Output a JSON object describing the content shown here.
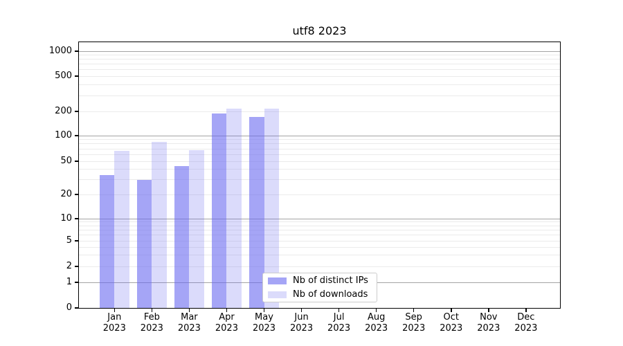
{
  "title": "utf8 2023",
  "chart_data": {
    "type": "bar",
    "title": "utf8 2023",
    "categories": [
      "Jan 2023",
      "Feb 2023",
      "Mar 2023",
      "Apr 2023",
      "May 2023",
      "Jun 2023",
      "Jul 2023",
      "Aug 2023",
      "Sep 2023",
      "Oct 2023",
      "Nov 2023",
      "Dec 2023"
    ],
    "x_tick_months": [
      "Jan",
      "Feb",
      "Mar",
      "Apr",
      "May",
      "Jun",
      "Jul",
      "Aug",
      "Sep",
      "Oct",
      "Nov",
      "Dec"
    ],
    "x_tick_year": "2023",
    "series": [
      {
        "name": "Nb of distinct IPs",
        "color": "rgba(105,105,240,0.60)",
        "values": [
          34,
          30,
          44,
          190,
          172,
          0,
          0,
          0,
          0,
          0,
          0,
          0
        ]
      },
      {
        "name": "Nb of downloads",
        "color": "rgba(105,105,240,0.24)",
        "values": [
          66,
          84,
          68,
          215,
          216,
          0,
          0,
          0,
          0,
          0,
          0,
          0
        ]
      }
    ],
    "y_axis": {
      "scale": "symlog",
      "ticks": [
        0,
        1,
        2,
        5,
        10,
        20,
        50,
        100,
        200,
        500,
        1000
      ],
      "major_gridlines": [
        1,
        10,
        100,
        1000
      ],
      "minor_gridlines": [
        2,
        3,
        4,
        5,
        6,
        7,
        8,
        9,
        20,
        30,
        40,
        50,
        60,
        70,
        80,
        90,
        200,
        300,
        400,
        500,
        600,
        700,
        800,
        900
      ],
      "ylim": [
        0,
        1300
      ]
    },
    "legend": {
      "position": "bottom-center"
    },
    "grid": true
  },
  "colors": {
    "bar_base": "#6969f0",
    "major_grid": "#a3a3a3",
    "minor_grid": "#ebebeb",
    "spine": "#000000"
  }
}
